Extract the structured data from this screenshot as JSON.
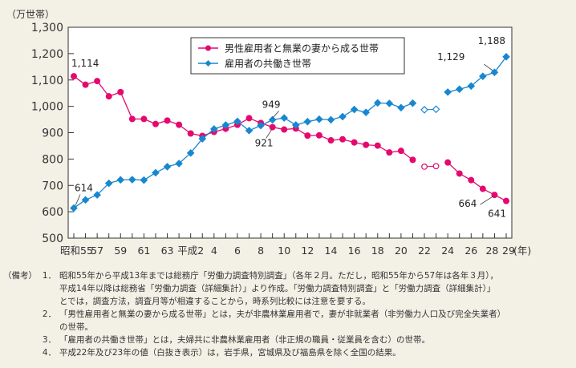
{
  "chart_data": {
    "type": "line",
    "ylabel": "（万世帯）",
    "xlabel_unit": "(年)",
    "ylim": [
      500,
      1300
    ],
    "y_ticks": [
      "500",
      "600",
      "700",
      "800",
      "900",
      "1,000",
      "1,100",
      "1,200",
      "1,300"
    ],
    "y_tick_values": [
      500,
      600,
      700,
      800,
      900,
      1000,
      1100,
      1200,
      1300
    ],
    "x_tick_labels": [
      "昭和55",
      "57",
      "59",
      "61",
      "63",
      "平成2",
      "4",
      "6",
      "8",
      "10",
      "12",
      "14",
      "16",
      "18",
      "20",
      "22",
      "24",
      "26",
      "28",
      "29"
    ],
    "x_tick_index": [
      0,
      2,
      4,
      6,
      8,
      10,
      12,
      14,
      16,
      18,
      20,
      22,
      24,
      26,
      28,
      30,
      32,
      34,
      36,
      37
    ],
    "x_count": 38,
    "legend": "top-center",
    "series": [
      {
        "name": "男性雇用者と無業の妻から成る世帯",
        "color": "#e4096e",
        "marker": "circle",
        "values": [
          1114,
          1082,
          1096,
          1038,
          1054,
          952,
          952,
          933,
          946,
          930,
          897,
          888,
          903,
          915,
          930,
          955,
          937,
          921,
          912,
          916,
          889,
          890,
          871,
          875,
          863,
          854,
          851,
          825,
          831,
          797,
          771,
          773,
          787,
          745,
          720,
          687,
          664,
          641
        ],
        "open_indices": [
          30,
          31
        ]
      },
      {
        "name": "雇用者の共働き世帯",
        "color": "#1787d0",
        "marker": "diamond",
        "values": [
          614,
          645,
          664,
          708,
          721,
          722,
          720,
          748,
          771,
          783,
          823,
          877,
          914,
          929,
          943,
          908,
          927,
          949,
          956,
          929,
          942,
          951,
          949,
          961,
          988,
          977,
          1013,
          1011,
          995,
          1012,
          987,
          989,
          1054,
          1065,
          1077,
          1114,
          1129,
          1188
        ],
        "open_indices": [
          30,
          31
        ]
      }
    ],
    "annotations": [
      {
        "series": 0,
        "index": 0,
        "text": "1,114"
      },
      {
        "series": 1,
        "index": 0,
        "text": "614"
      },
      {
        "series": 1,
        "index": 17,
        "text": "949"
      },
      {
        "series": 0,
        "index": 17,
        "text": "921"
      },
      {
        "series": 1,
        "index": 36,
        "text": "1,129"
      },
      {
        "series": 1,
        "index": 37,
        "text": "1,188"
      },
      {
        "series": 0,
        "index": 36,
        "text": "664"
      },
      {
        "series": 0,
        "index": 37,
        "text": "641"
      }
    ]
  },
  "notes": {
    "head": "（備考）",
    "items": [
      {
        "num": "1．",
        "lines": [
          "昭和55年から平成13年までは総務庁「労働力調査特別調査」（各年２月。ただし，昭和55年から57年は各年３月），",
          "平成14年以降は総務省「労働力調査（詳細集計）」より作成。「労働力調査特別調査」と「労働力調査（詳細集計）」",
          "とでは，調査方法，調査月等が相違することから，時系列比較には注意を要する。"
        ]
      },
      {
        "num": "2．",
        "lines": [
          "「男性雇用者と無業の妻から成る世帯」とは，夫が非農林業雇用者で，妻が非就業者（非労働力人口及び完全失業者）",
          "の世帯。"
        ]
      },
      {
        "num": "3．",
        "lines": [
          "「雇用者の共働き世帯」とは，夫婦共に非農林業雇用者（非正規の職員・従業員を含む）の世帯。"
        ]
      },
      {
        "num": "4．",
        "lines": [
          "平成22年及び23年の値（白抜き表示）は，岩手県，宮城県及び福島県を除く全国の結果。"
        ]
      }
    ]
  }
}
